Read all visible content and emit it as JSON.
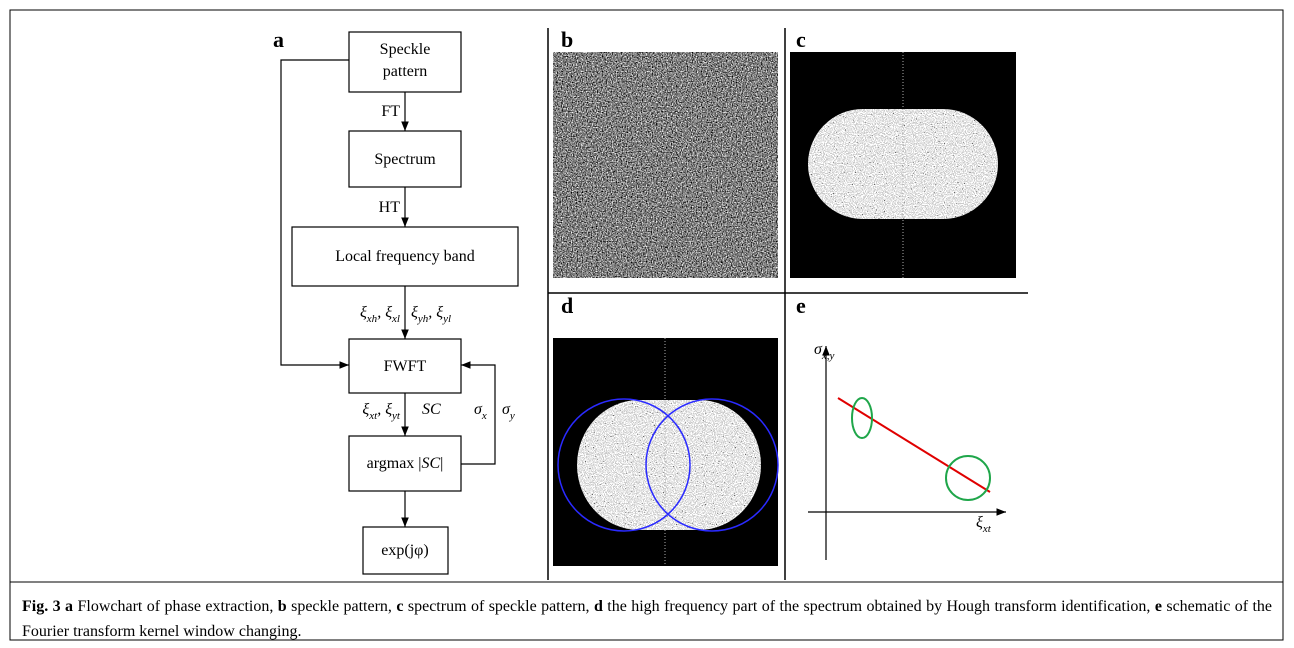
{
  "panels": [
    "a",
    "b",
    "c",
    "d",
    "e"
  ],
  "flowchart": {
    "nodes": [
      [
        [
          {
            "text": "Speckle"
          }
        ],
        [
          {
            "text": "pattern"
          }
        ]
      ],
      [
        [
          {
            "text": "Spectrum"
          }
        ]
      ],
      [
        [
          {
            "text": "Local frequency band"
          }
        ]
      ],
      [
        [
          {
            "text": "FWFT"
          }
        ]
      ],
      [
        [
          {
            "text": "argmax |"
          },
          {
            "text": "SC",
            "style": "italic"
          },
          {
            "text": "|"
          }
        ]
      ],
      [
        [
          {
            "text": "exp(jφ)"
          }
        ]
      ]
    ],
    "edge_labels": [
      [
        {
          "text": "FT"
        }
      ],
      [
        {
          "text": "HT"
        }
      ],
      [
        {
          "text": "ξ",
          "style": "italic"
        },
        {
          "text": "xh",
          "style": "sub"
        },
        {
          "text": ", ξ",
          "style": "italic"
        },
        {
          "text": "xl",
          "style": "sub"
        }
      ],
      [
        {
          "text": "ξ",
          "style": "italic"
        },
        {
          "text": "yh",
          "style": "sub"
        },
        {
          "text": ", ξ",
          "style": "italic"
        },
        {
          "text": "yl",
          "style": "sub"
        }
      ],
      [
        {
          "text": "ξ",
          "style": "italic"
        },
        {
          "text": "xt",
          "style": "sub"
        },
        {
          "text": ", ξ",
          "style": "italic"
        },
        {
          "text": "yt",
          "style": "sub"
        }
      ],
      [
        {
          "text": "SC",
          "style": "italic"
        }
      ],
      [
        {
          "text": "σ",
          "style": "italic"
        },
        {
          "text": "x",
          "style": "sub"
        }
      ],
      [
        {
          "text": "σ",
          "style": "italic"
        },
        {
          "text": "y",
          "style": "sub"
        }
      ]
    ]
  },
  "schematic": {
    "y_label": [
      {
        "text": "σ",
        "style": "italic"
      },
      {
        "text": "x,y",
        "style": "sub"
      }
    ],
    "x_label": [
      {
        "text": "ξ",
        "style": "italic"
      },
      {
        "text": "xt",
        "style": "sub"
      }
    ]
  },
  "caption": [
    {
      "text": "Fig. 3 a",
      "style": "bold"
    },
    {
      "text": " Flowchart of phase extraction, "
    },
    {
      "text": "b",
      "style": "bold"
    },
    {
      "text": " speckle pattern, "
    },
    {
      "text": "c",
      "style": "bold"
    },
    {
      "text": " spectrum of speckle pattern, "
    },
    {
      "text": "d",
      "style": "bold"
    },
    {
      "text": " the high frequency part of the spectrum obtained by Hough transform identification, "
    },
    {
      "text": "e",
      "style": "bold"
    },
    {
      "text": " schematic of the Fourier transform kernel window changing."
    }
  ]
}
